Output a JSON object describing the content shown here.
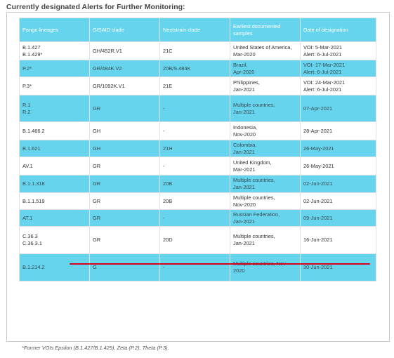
{
  "heading": "Currently designated Alerts for Further Monitoring:",
  "columns": [
    "Pango lineages",
    "GISAID clade",
    "Nextstrain clade",
    "Earliest documented samples",
    "Date of designation"
  ],
  "rows": [
    {
      "pango": [
        "B.1.427",
        "B.1.429*"
      ],
      "gisaid": "GH/452R.V1",
      "nextstrain": "21C",
      "samples": [
        "United States of America,",
        "Mar-2020"
      ],
      "date": [
        "VOI: 5-Mar-2021",
        "Alert: 6-Jul-2021"
      ],
      "shade": "white"
    },
    {
      "pango": [
        "P.2*"
      ],
      "gisaid": "GR/484K.V2",
      "nextstrain": "20B/S.484K",
      "samples": [
        "Brazil,",
        "Apr-2020"
      ],
      "date": [
        "VOI: 17-Mar-2021",
        "Alert: 6-Jul-2021"
      ],
      "shade": "blue"
    },
    {
      "pango": [
        "P.3*"
      ],
      "gisaid": "GR/1092K.V1",
      "nextstrain": "21E",
      "samples": [
        "Philippines,",
        "Jan-2021"
      ],
      "date": [
        "VOI: 24-Mar-2021",
        "Alert: 6-Jul-2021"
      ],
      "shade": "white"
    },
    {
      "pango": [
        "R.1",
        "R.2"
      ],
      "gisaid": "GR",
      "nextstrain": "-",
      "samples": [
        "Multiple countries,",
        "Jan-2021"
      ],
      "date": [
        "07-Apr-2021"
      ],
      "shade": "blue"
    },
    {
      "pango": [
        "B.1.466.2"
      ],
      "gisaid": "GH",
      "nextstrain": "-",
      "samples": [
        "Indonesia,",
        "Nov-2020"
      ],
      "date": [
        "28-Apr-2021"
      ],
      "shade": "white"
    },
    {
      "pango": [
        "B.1.621"
      ],
      "gisaid": "GH",
      "nextstrain": "21H",
      "samples": [
        "Colombia,",
        "Jan-2021"
      ],
      "date": [
        "26-May-2021"
      ],
      "shade": "blue"
    },
    {
      "pango": [
        "AV.1"
      ],
      "gisaid": "GR",
      "nextstrain": "-",
      "samples": [
        "United Kingdom,",
        "Mar-2021"
      ],
      "date": [
        "26-May-2021"
      ],
      "shade": "white"
    },
    {
      "pango": [
        "B.1.1.318"
      ],
      "gisaid": "GR",
      "nextstrain": "20B",
      "samples": [
        "Multiple countries,",
        "Jan-2021"
      ],
      "date": [
        "02-Jun-2021"
      ],
      "shade": "blue"
    },
    {
      "pango": [
        "B.1.1.519"
      ],
      "gisaid": "GR",
      "nextstrain": "20B",
      "samples": [
        "Multiple countries,",
        "Nov-2020"
      ],
      "date": [
        "02-Jun-2021"
      ],
      "shade": "white"
    },
    {
      "pango": [
        "AT.1"
      ],
      "gisaid": "GR",
      "nextstrain": "-",
      "samples": [
        "Russian Federation,",
        "Jan-2021"
      ],
      "date": [
        "09-Jun-2021"
      ],
      "shade": "blue"
    },
    {
      "pango": [
        "C.36.3",
        "C.36.3.1"
      ],
      "gisaid": "GR",
      "nextstrain": "20D",
      "samples": [
        "Multiple countries,",
        "Jan-2021"
      ],
      "date": [
        "16-Jun-2021"
      ],
      "shade": "white"
    },
    {
      "pango": [
        "B.1.214.2"
      ],
      "gisaid": "G",
      "nextstrain": "-",
      "samples": [
        "Multiple countries, Nov-",
        "2020"
      ],
      "date": [
        "30-Jun-2021"
      ],
      "shade": "blue"
    }
  ],
  "footnote": "*Former VOIs Epsilon (B.1.427/B.1.429), Zeta (P.2), Theta (P.3).",
  "colors": {
    "header_bg": "#65d4ec",
    "row_blue": "#65d4ec",
    "highlight_line": "#d4001c"
  }
}
